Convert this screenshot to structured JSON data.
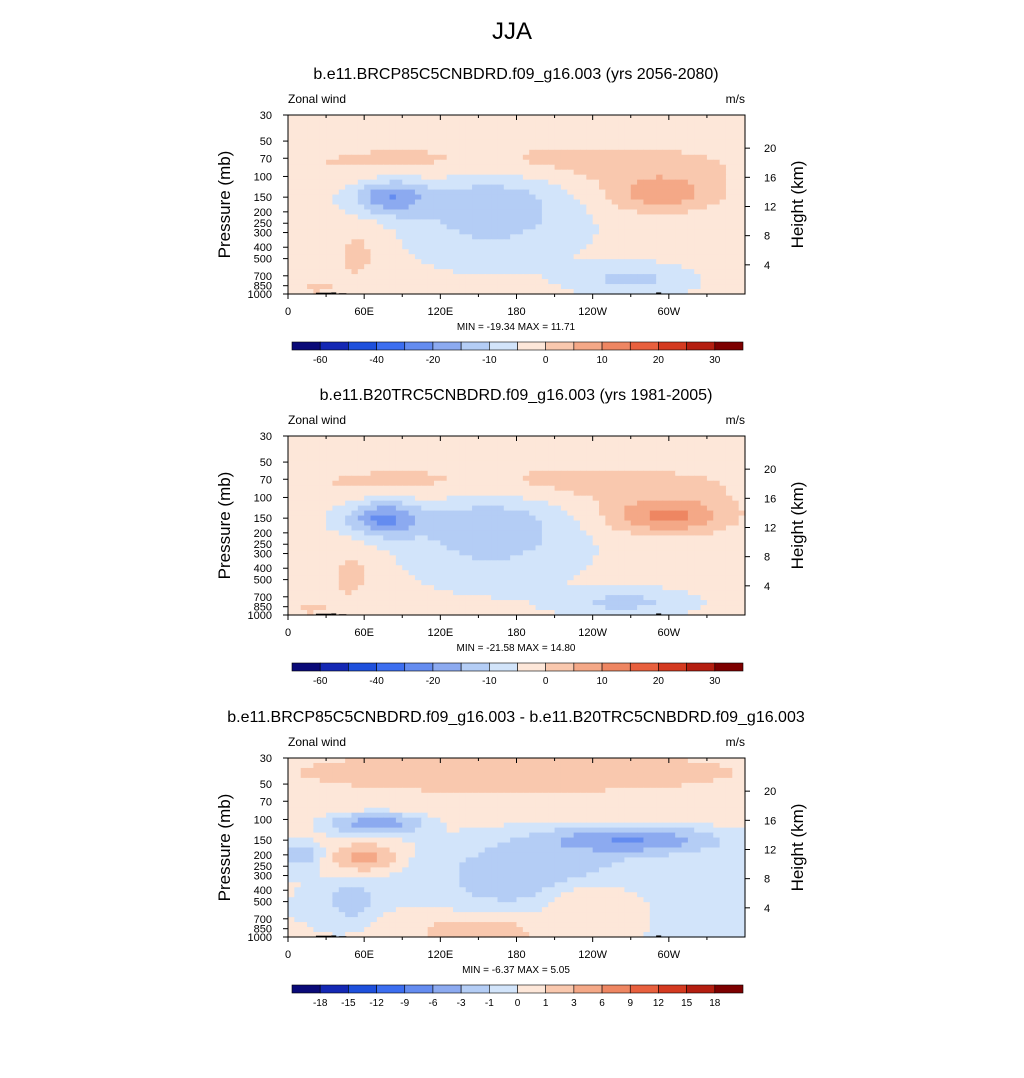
{
  "figure": {
    "title": "JJA",
    "colors": {
      "neg": [
        "#0a0a78",
        "#1428b4",
        "#1e50dc",
        "#3c6ef0",
        "#648cf0",
        "#8caaf0",
        "#b4cdf5",
        "#d2e4fa"
      ],
      "pos": [
        "#fde7d9",
        "#f9c8ae",
        "#f4a887",
        "#ee8662",
        "#e8603e",
        "#d43a20",
        "#b41e10",
        "#7d0000"
      ],
      "land": "#000000"
    }
  },
  "panels": [
    {
      "title": "b.e11.BRCP85C5CNBDRD.f09_g16.003 (yrs 2056-2080)",
      "left_label": "Zonal wind",
      "right_label": "m/s",
      "minmax": "MIN = -19.34  MAX =  11.71"
    },
    {
      "title": "b.e11.B20TRC5CNBDRD.f09_g16.003 (yrs 1981-2005)",
      "left_label": "Zonal wind",
      "right_label": "m/s",
      "minmax": "MIN = -21.58  MAX =  14.80"
    },
    {
      "title": "b.e11.BRCP85C5CNBDRD.f09_g16.003 - b.e11.B20TRC5CNBDRD.f09_g16.003",
      "left_label": "Zonal wind",
      "right_label": "m/s",
      "minmax": "MIN = -6.37  MAX =   5.05"
    }
  ],
  "chart_data": [
    {
      "type": "heatmap",
      "title": "b.e11.BRCP85C5CNBDRD.f09_g16.003 (yrs 2056-2080)",
      "variable": "Zonal wind",
      "units": "m/s",
      "xlabel": "",
      "ylabel": "Pressure (mb)",
      "ylabel_right": "Height (km)",
      "x_ticks": [
        "0",
        "60E",
        "120E",
        "180",
        "120W",
        "60W"
      ],
      "x_tick_values": [
        0,
        60,
        120,
        180,
        240,
        300
      ],
      "xlim": [
        0,
        360
      ],
      "y_ticks": [
        "30",
        "50",
        "70",
        "100",
        "150",
        "200",
        "250",
        "300",
        "400",
        "500",
        "700",
        "850",
        "1000"
      ],
      "y_tick_values": [
        30,
        50,
        70,
        100,
        150,
        200,
        250,
        300,
        400,
        500,
        700,
        850,
        1000
      ],
      "ylim": [
        1000,
        30
      ],
      "yscale": "log",
      "right_ticks": [
        "20",
        "16",
        "12",
        "8",
        "4"
      ],
      "right_tick_values": [
        20,
        16,
        12,
        8,
        4
      ],
      "colorbar_levels": [
        -70,
        -60,
        -50,
        -40,
        -30,
        -20,
        -15,
        -10,
        -5,
        0,
        5,
        10,
        15,
        20,
        25,
        30,
        35
      ],
      "colorbar_labels": [
        "-60",
        "-40",
        "-20",
        "-10",
        "0",
        "10",
        "20",
        "30"
      ],
      "min": -19.34,
      "max": 11.71,
      "features": [
        {
          "lon": 80,
          "p": 150,
          "value": -18,
          "kind": "easterly jet"
        },
        {
          "lon": 300,
          "p": 150,
          "value": 11,
          "kind": "westerly jet"
        }
      ]
    },
    {
      "type": "heatmap",
      "title": "b.e11.B20TRC5CNBDRD.f09_g16.003 (yrs 1981-2005)",
      "variable": "Zonal wind",
      "units": "m/s",
      "xlabel": "",
      "ylabel": "Pressure (mb)",
      "ylabel_right": "Height (km)",
      "x_ticks": [
        "0",
        "60E",
        "120E",
        "180",
        "120W",
        "60W"
      ],
      "x_tick_values": [
        0,
        60,
        120,
        180,
        240,
        300
      ],
      "xlim": [
        0,
        360
      ],
      "y_ticks": [
        "30",
        "50",
        "70",
        "100",
        "150",
        "200",
        "250",
        "300",
        "400",
        "500",
        "700",
        "850",
        "1000"
      ],
      "y_tick_values": [
        30,
        50,
        70,
        100,
        150,
        200,
        250,
        300,
        400,
        500,
        700,
        850,
        1000
      ],
      "ylim": [
        1000,
        30
      ],
      "yscale": "log",
      "right_ticks": [
        "20",
        "16",
        "12",
        "8",
        "4"
      ],
      "right_tick_values": [
        20,
        16,
        12,
        8,
        4
      ],
      "colorbar_levels": [
        -70,
        -60,
        -50,
        -40,
        -30,
        -20,
        -15,
        -10,
        -5,
        0,
        5,
        10,
        15,
        20,
        25,
        30,
        35
      ],
      "colorbar_labels": [
        "-60",
        "-40",
        "-20",
        "-10",
        "0",
        "10",
        "20",
        "30"
      ],
      "min": -21.58,
      "max": 14.8,
      "features": [
        {
          "lon": 75,
          "p": 150,
          "value": -20,
          "kind": "easterly jet"
        },
        {
          "lon": 305,
          "p": 150,
          "value": 14,
          "kind": "westerly jet"
        }
      ]
    },
    {
      "type": "heatmap",
      "title": "b.e11.BRCP85C5CNBDRD.f09_g16.003 - b.e11.B20TRC5CNBDRD.f09_g16.003",
      "variable": "Zonal wind",
      "units": "m/s",
      "xlabel": "",
      "ylabel": "Pressure (mb)",
      "ylabel_right": "Height (km)",
      "x_ticks": [
        "0",
        "60E",
        "120E",
        "180",
        "120W",
        "60W"
      ],
      "x_tick_values": [
        0,
        60,
        120,
        180,
        240,
        300
      ],
      "xlim": [
        0,
        360
      ],
      "y_ticks": [
        "30",
        "50",
        "70",
        "100",
        "150",
        "200",
        "250",
        "300",
        "400",
        "500",
        "700",
        "850",
        "1000"
      ],
      "y_tick_values": [
        30,
        50,
        70,
        100,
        150,
        200,
        250,
        300,
        400,
        500,
        700,
        850,
        1000
      ],
      "ylim": [
        1000,
        30
      ],
      "yscale": "log",
      "right_ticks": [
        "20",
        "16",
        "12",
        "8",
        "4"
      ],
      "right_tick_values": [
        20,
        16,
        12,
        8,
        4
      ],
      "colorbar_levels": [
        -21,
        -18,
        -15,
        -12,
        -9,
        -6,
        -3,
        -1,
        0,
        1,
        3,
        6,
        9,
        12,
        15,
        18,
        21
      ],
      "colorbar_labels": [
        "-18",
        "-15",
        "-12",
        "-9",
        "-6",
        "-3",
        "-1",
        "0",
        "1",
        "3",
        "6",
        "9",
        "12",
        "15",
        "18"
      ],
      "min": -6.37,
      "max": 5.05,
      "features": [
        {
          "lon": 70,
          "p": 110,
          "value": -5,
          "kind": "negative anomaly"
        },
        {
          "lon": 270,
          "p": 150,
          "value": -6,
          "kind": "negative anomaly"
        },
        {
          "lon": 55,
          "p": 220,
          "value": 4,
          "kind": "positive anomaly"
        }
      ]
    }
  ]
}
